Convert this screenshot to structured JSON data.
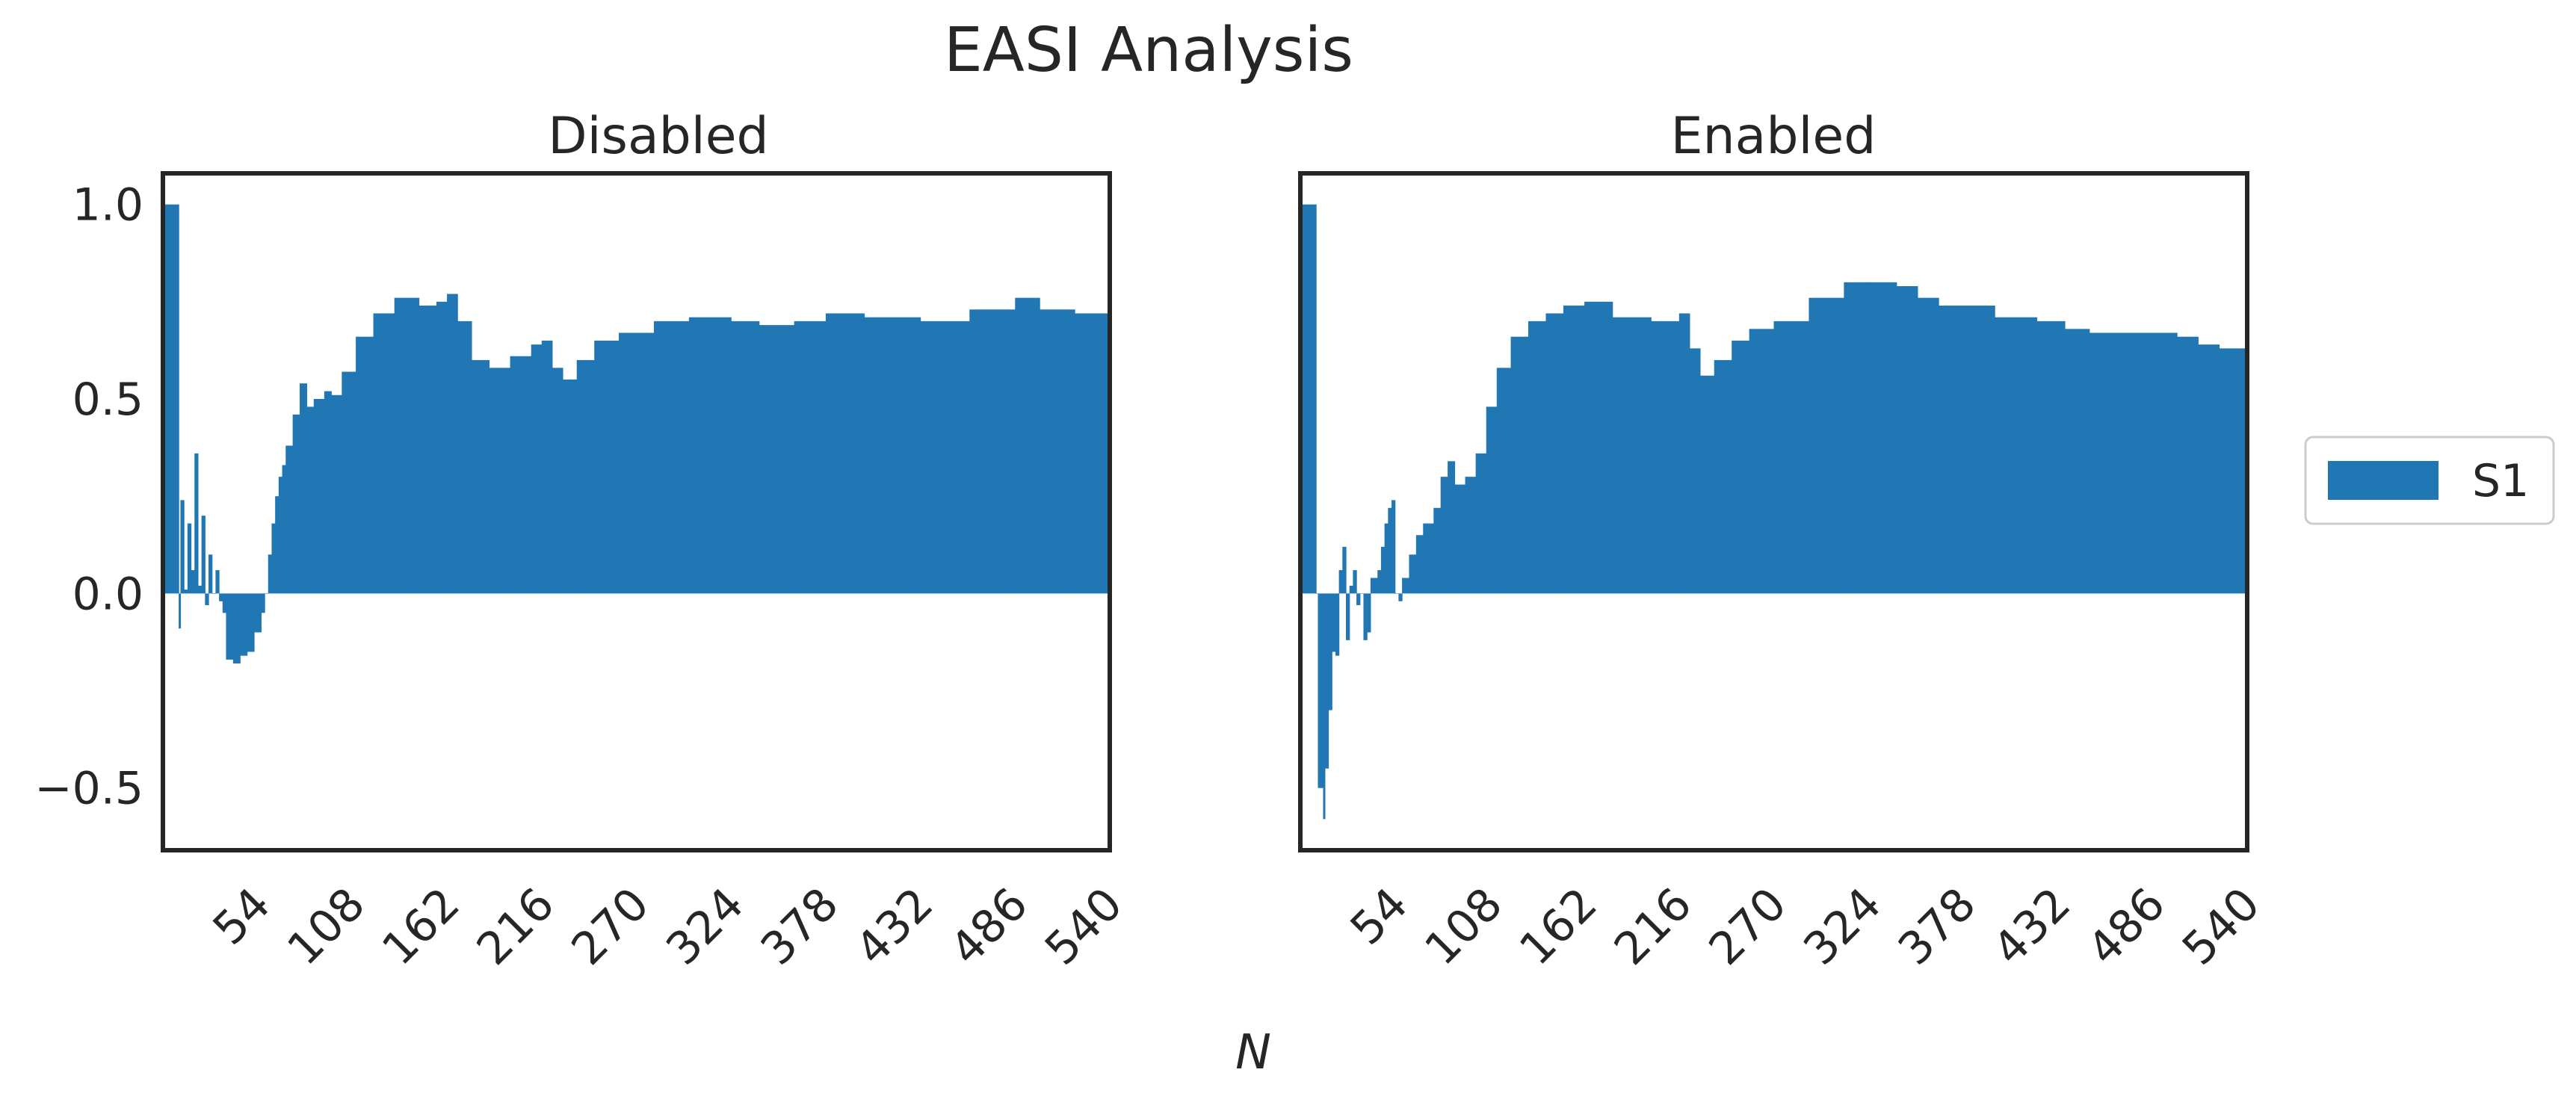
{
  "chart_data": {
    "type": "bar",
    "title": "EASI Analysis",
    "xlabel": "N",
    "ylabel": "",
    "x_ticks": [
      "54",
      "108",
      "162",
      "216",
      "270",
      "324",
      "378",
      "432",
      "486",
      "540"
    ],
    "y_ticks": [
      "1.0",
      "0.5",
      "0.0",
      "−0.5"
    ],
    "xlim": [
      0,
      540
    ],
    "ylim": [
      -0.66,
      1.08
    ],
    "legend_position": "right",
    "grid": false,
    "series_color": "#2177b4",
    "panels": [
      {
        "title": "Disabled",
        "series": [
          {
            "name": "S1",
            "points": [
              [
                0,
                1.0
              ],
              [
                8,
                1.0
              ],
              [
                9,
                -0.09
              ],
              [
                10,
                0.24
              ],
              [
                12,
                0.01
              ],
              [
                14,
                0.18
              ],
              [
                16,
                0.06
              ],
              [
                18,
                0.36
              ],
              [
                20,
                0.02
              ],
              [
                22,
                0.2
              ],
              [
                24,
                -0.03
              ],
              [
                26,
                0.1
              ],
              [
                28,
                0.0
              ],
              [
                30,
                0.06
              ],
              [
                32,
                -0.02
              ],
              [
                34,
                -0.05
              ],
              [
                36,
                -0.17
              ],
              [
                40,
                -0.18
              ],
              [
                44,
                -0.16
              ],
              [
                48,
                -0.15
              ],
              [
                52,
                -0.1
              ],
              [
                56,
                -0.05
              ],
              [
                58,
                0.0
              ],
              [
                60,
                0.1
              ],
              [
                62,
                0.18
              ],
              [
                64,
                0.25
              ],
              [
                66,
                0.3
              ],
              [
                68,
                0.33
              ],
              [
                70,
                0.38
              ],
              [
                74,
                0.46
              ],
              [
                78,
                0.54
              ],
              [
                82,
                0.48
              ],
              [
                86,
                0.5
              ],
              [
                92,
                0.52
              ],
              [
                96,
                0.51
              ],
              [
                102,
                0.57
              ],
              [
                110,
                0.66
              ],
              [
                120,
                0.72
              ],
              [
                132,
                0.76
              ],
              [
                140,
                0.76
              ],
              [
                146,
                0.74
              ],
              [
                156,
                0.75
              ],
              [
                162,
                0.77
              ],
              [
                168,
                0.7
              ],
              [
                176,
                0.6
              ],
              [
                186,
                0.58
              ],
              [
                198,
                0.61
              ],
              [
                210,
                0.64
              ],
              [
                216,
                0.65
              ],
              [
                222,
                0.58
              ],
              [
                228,
                0.55
              ],
              [
                236,
                0.6
              ],
              [
                246,
                0.65
              ],
              [
                260,
                0.67
              ],
              [
                280,
                0.7
              ],
              [
                300,
                0.71
              ],
              [
                324,
                0.7
              ],
              [
                340,
                0.69
              ],
              [
                360,
                0.7
              ],
              [
                378,
                0.72
              ],
              [
                400,
                0.71
              ],
              [
                432,
                0.7
              ],
              [
                460,
                0.73
              ],
              [
                486,
                0.76
              ],
              [
                500,
                0.73
              ],
              [
                520,
                0.72
              ],
              [
                540,
                0.73
              ]
            ]
          }
        ]
      },
      {
        "title": "Enabled",
        "series": [
          {
            "name": "S1",
            "points": [
              [
                0,
                1.0
              ],
              [
                8,
                1.0
              ],
              [
                9,
                0.0
              ],
              [
                10,
                -0.5
              ],
              [
                13,
                -0.58
              ],
              [
                14,
                -0.45
              ],
              [
                16,
                -0.3
              ],
              [
                18,
                -0.15
              ],
              [
                20,
                -0.16
              ],
              [
                22,
                0.06
              ],
              [
                24,
                0.12
              ],
              [
                26,
                -0.12
              ],
              [
                28,
                0.02
              ],
              [
                30,
                0.06
              ],
              [
                32,
                -0.03
              ],
              [
                34,
                0.0
              ],
              [
                36,
                -0.12
              ],
              [
                38,
                -0.1
              ],
              [
                40,
                0.04
              ],
              [
                44,
                0.06
              ],
              [
                46,
                0.12
              ],
              [
                48,
                0.18
              ],
              [
                50,
                0.22
              ],
              [
                52,
                0.24
              ],
              [
                54,
                0.0
              ],
              [
                56,
                -0.02
              ],
              [
                58,
                0.04
              ],
              [
                62,
                0.1
              ],
              [
                66,
                0.15
              ],
              [
                70,
                0.18
              ],
              [
                76,
                0.22
              ],
              [
                80,
                0.3
              ],
              [
                84,
                0.34
              ],
              [
                88,
                0.28
              ],
              [
                94,
                0.3
              ],
              [
                100,
                0.36
              ],
              [
                106,
                0.48
              ],
              [
                112,
                0.58
              ],
              [
                120,
                0.66
              ],
              [
                130,
                0.7
              ],
              [
                140,
                0.72
              ],
              [
                150,
                0.74
              ],
              [
                162,
                0.75
              ],
              [
                178,
                0.71
              ],
              [
                200,
                0.7
              ],
              [
                216,
                0.72
              ],
              [
                222,
                0.63
              ],
              [
                228,
                0.56
              ],
              [
                236,
                0.6
              ],
              [
                246,
                0.65
              ],
              [
                256,
                0.68
              ],
              [
                270,
                0.7
              ],
              [
                290,
                0.76
              ],
              [
                310,
                0.8
              ],
              [
                324,
                0.8
              ],
              [
                340,
                0.79
              ],
              [
                352,
                0.76
              ],
              [
                364,
                0.74
              ],
              [
                378,
                0.74
              ],
              [
                396,
                0.71
              ],
              [
                420,
                0.7
              ],
              [
                436,
                0.68
              ],
              [
                450,
                0.67
              ],
              [
                486,
                0.67
              ],
              [
                500,
                0.66
              ],
              [
                512,
                0.64
              ],
              [
                524,
                0.63
              ],
              [
                540,
                0.65
              ]
            ]
          }
        ]
      }
    ]
  }
}
